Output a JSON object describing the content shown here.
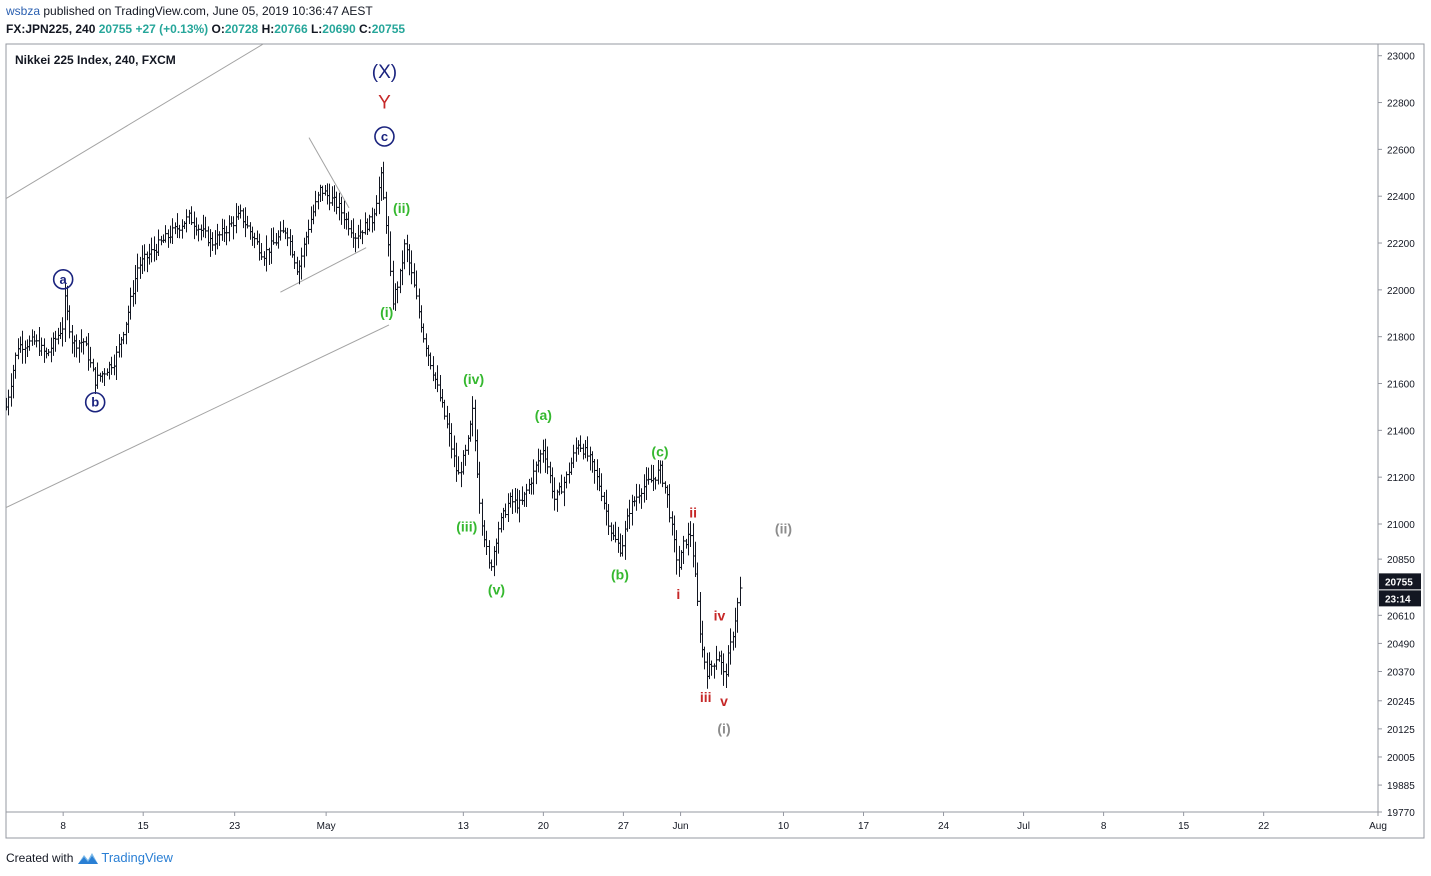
{
  "header": {
    "user": "wsbza",
    "published_text": " published on TradingView.com, June 05, 2019 10:36:47 AEST",
    "symbol": "FX:JPN225, 240",
    "last": "20755",
    "change": "+27 (+0.13%)",
    "o_label": "O:",
    "o": "20728",
    "h_label": "H:",
    "h": "20766",
    "l_label": "L:",
    "l": "20690",
    "c_label": "C:",
    "c": "20755"
  },
  "footer": {
    "created_with": "Created with",
    "brand": "TradingView"
  },
  "colors": {
    "green": "#26a69a",
    "wave_green": "#35b82f",
    "wave_red": "#c62828",
    "wave_blue": "#1a237e",
    "wave_gray": "#8c8c8c",
    "last_price_bg": "#131722"
  },
  "chart_data": {
    "type": "ohlc",
    "title": "Nikkei 225 Index, 240, FXCM",
    "ylim": [
      19770,
      23050
    ],
    "y_ticks": [
      23000,
      22800,
      22600,
      22400,
      22200,
      22000,
      21800,
      21600,
      21400,
      21200,
      21000,
      20850,
      20610,
      20490,
      20370,
      20245,
      20125,
      20005,
      19885,
      19770
    ],
    "x_tick_labels": [
      {
        "label": "8",
        "day": 8
      },
      {
        "label": "15",
        "day": 15
      },
      {
        "label": "23",
        "day": 23
      },
      {
        "label": "May",
        "day": 31
      },
      {
        "label": "13",
        "day": 43
      },
      {
        "label": "20",
        "day": 50
      },
      {
        "label": "27",
        "day": 57
      },
      {
        "label": "Jun",
        "day": 62
      },
      {
        "label": "10",
        "day": 71
      },
      {
        "label": "17",
        "day": 78
      },
      {
        "label": "24",
        "day": 85
      },
      {
        "label": "Jul",
        "day": 92
      },
      {
        "label": "8",
        "day": 99
      },
      {
        "label": "15",
        "day": 106
      },
      {
        "label": "22",
        "day": 113
      },
      {
        "label": "Aug",
        "day": 123
      }
    ],
    "x_range_days": [
      3,
      123
    ],
    "last_price": "20755",
    "countdown": "23:14",
    "price_path": [
      {
        "d": 3.0,
        "p": 21500
      },
      {
        "d": 4.0,
        "p": 21760
      },
      {
        "d": 5.5,
        "p": 21780
      },
      {
        "d": 6.5,
        "p": 21720
      },
      {
        "d": 8.0,
        "p": 21850
      },
      {
        "d": 8.1,
        "p": 21960
      },
      {
        "d": 8.8,
        "p": 21770
      },
      {
        "d": 9.8,
        "p": 21780
      },
      {
        "d": 10.8,
        "p": 21610
      },
      {
        "d": 12.5,
        "p": 21700
      },
      {
        "d": 13.5,
        "p": 21870
      },
      {
        "d": 14.5,
        "p": 22100
      },
      {
        "d": 16.5,
        "p": 22200
      },
      {
        "d": 19.0,
        "p": 22310
      },
      {
        "d": 21.0,
        "p": 22200
      },
      {
        "d": 23.5,
        "p": 22320
      },
      {
        "d": 25.5,
        "p": 22150
      },
      {
        "d": 27.5,
        "p": 22260
      },
      {
        "d": 28.5,
        "p": 22080
      },
      {
        "d": 29.5,
        "p": 22280
      },
      {
        "d": 30.5,
        "p": 22430
      },
      {
        "d": 32.0,
        "p": 22360
      },
      {
        "d": 33.5,
        "p": 22230
      },
      {
        "d": 35.0,
        "p": 22300
      },
      {
        "d": 35.8,
        "p": 22480
      },
      {
        "d": 36.3,
        "p": 22250
      },
      {
        "d": 36.8,
        "p": 21950
      },
      {
        "d": 37.4,
        "p": 22050
      },
      {
        "d": 37.9,
        "p": 22200
      },
      {
        "d": 38.8,
        "p": 21980
      },
      {
        "d": 39.5,
        "p": 21800
      },
      {
        "d": 40.5,
        "p": 21620
      },
      {
        "d": 41.5,
        "p": 21430
      },
      {
        "d": 42.5,
        "p": 21200
      },
      {
        "d": 43.3,
        "p": 21320
      },
      {
        "d": 43.8,
        "p": 21480
      },
      {
        "d": 44.5,
        "p": 21050
      },
      {
        "d": 45.3,
        "p": 20800
      },
      {
        "d": 46.0,
        "p": 20980
      },
      {
        "d": 47.0,
        "p": 21100
      },
      {
        "d": 48.0,
        "p": 21080
      },
      {
        "d": 49.0,
        "p": 21200
      },
      {
        "d": 50.0,
        "p": 21330
      },
      {
        "d": 51.0,
        "p": 21100
      },
      {
        "d": 52.0,
        "p": 21200
      },
      {
        "d": 53.0,
        "p": 21350
      },
      {
        "d": 54.0,
        "p": 21280
      },
      {
        "d": 55.0,
        "p": 21150
      },
      {
        "d": 56.0,
        "p": 20950
      },
      {
        "d": 56.8,
        "p": 20890
      },
      {
        "d": 57.5,
        "p": 21060
      },
      {
        "d": 58.5,
        "p": 21150
      },
      {
        "d": 59.5,
        "p": 21190
      },
      {
        "d": 60.2,
        "p": 21230
      },
      {
        "d": 60.8,
        "p": 21120
      },
      {
        "d": 61.3,
        "p": 20950
      },
      {
        "d": 61.8,
        "p": 20810
      },
      {
        "d": 62.3,
        "p": 20920
      },
      {
        "d": 62.9,
        "p": 20960
      },
      {
        "d": 63.4,
        "p": 20700
      },
      {
        "d": 63.8,
        "p": 20480
      },
      {
        "d": 64.3,
        "p": 20370
      },
      {
        "d": 64.8,
        "p": 20400
      },
      {
        "d": 65.3,
        "p": 20450
      },
      {
        "d": 65.8,
        "p": 20340
      },
      {
        "d": 66.5,
        "p": 20520
      },
      {
        "d": 67.2,
        "p": 20730
      }
    ],
    "trend_lines": [
      {
        "from": {
          "d": 3.0,
          "p": 22390
        },
        "to": {
          "d": 25.5,
          "p": 23050
        }
      },
      {
        "from": {
          "d": 3.0,
          "p": 21070
        },
        "to": {
          "d": 36.5,
          "p": 21850
        }
      },
      {
        "from": {
          "d": 27.0,
          "p": 21990
        },
        "to": {
          "d": 34.5,
          "p": 22180
        }
      },
      {
        "from": {
          "d": 29.5,
          "p": 22650
        },
        "to": {
          "d": 33.0,
          "p": 22350
        }
      }
    ],
    "wave_labels": [
      {
        "text": "(X)",
        "d": 36.1,
        "p": 22930,
        "color": "blue",
        "style": "plain-large"
      },
      {
        "text": "Y",
        "d": 36.1,
        "p": 22800,
        "color": "red",
        "style": "plain-large"
      },
      {
        "text": "c",
        "d": 36.1,
        "p": 22655,
        "color": "blue",
        "style": "circle"
      },
      {
        "text": "a",
        "d": 8.0,
        "p": 22045,
        "color": "blue",
        "style": "circle"
      },
      {
        "text": "b",
        "d": 10.8,
        "p": 21520,
        "color": "blue",
        "style": "circle"
      },
      {
        "text": "(ii)",
        "d": 37.6,
        "p": 22350,
        "color": "green",
        "style": "bold"
      },
      {
        "text": "(i)",
        "d": 36.3,
        "p": 21905,
        "color": "green",
        "style": "bold"
      },
      {
        "text": "(iv)",
        "d": 43.9,
        "p": 21620,
        "color": "green",
        "style": "bold"
      },
      {
        "text": "(iii)",
        "d": 43.3,
        "p": 20990,
        "color": "green",
        "style": "bold"
      },
      {
        "text": "(v)",
        "d": 45.9,
        "p": 20720,
        "color": "green",
        "style": "bold"
      },
      {
        "text": "(a)",
        "d": 50.0,
        "p": 21465,
        "color": "green",
        "style": "bold"
      },
      {
        "text": "(b)",
        "d": 56.7,
        "p": 20785,
        "color": "green",
        "style": "bold"
      },
      {
        "text": "(c)",
        "d": 60.2,
        "p": 21310,
        "color": "green",
        "style": "bold"
      },
      {
        "text": "ii",
        "d": 63.1,
        "p": 21050,
        "color": "red",
        "style": "bold"
      },
      {
        "text": "i",
        "d": 61.8,
        "p": 20700,
        "color": "red",
        "style": "bold"
      },
      {
        "text": "iv",
        "d": 65.4,
        "p": 20610,
        "color": "red",
        "style": "bold"
      },
      {
        "text": "iii",
        "d": 64.2,
        "p": 20262,
        "color": "red",
        "style": "bold"
      },
      {
        "text": "v",
        "d": 65.8,
        "p": 20245,
        "color": "red",
        "style": "bold"
      },
      {
        "text": "(i)",
        "d": 65.8,
        "p": 20127,
        "color": "gray",
        "style": "bold"
      },
      {
        "text": "(ii)",
        "d": 71.0,
        "p": 20980,
        "color": "gray",
        "style": "bold"
      }
    ]
  }
}
